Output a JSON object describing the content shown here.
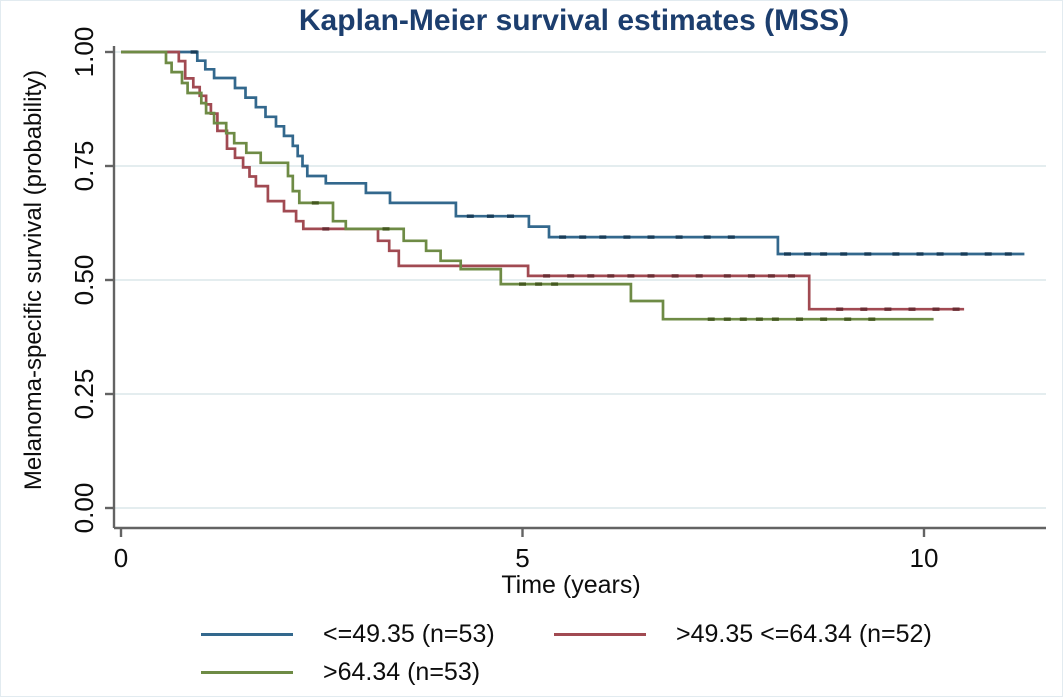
{
  "figure": {
    "title": "Kaplan-Meier survival estimates (MSS)",
    "title_color": "#1c3e6e",
    "background": "#ffffff",
    "grid_color": "#e4edef",
    "axis_color": "#636363",
    "text_color": "#0d0d0d"
  },
  "chart_data": {
    "type": "line",
    "variant": "kaplan-meier-step",
    "title": "Kaplan-Meier survival estimates (MSS)",
    "xlabel": "Time (years)",
    "ylabel": "Melanoma-specific survival (probability)",
    "xlim": [
      0,
      11.5
    ],
    "ylim": [
      0,
      1
    ],
    "grid": "horizontal light gridlines at y ticks",
    "legend_position": "below plot, two rows",
    "x_ticks": [
      {
        "value": 0,
        "label": "0"
      },
      {
        "value": 5,
        "label": "5"
      },
      {
        "value": 10,
        "label": "10"
      }
    ],
    "y_ticks": [
      {
        "value": 0.0,
        "label": "0.00"
      },
      {
        "value": 0.25,
        "label": "0.25"
      },
      {
        "value": 0.5,
        "label": "0.50"
      },
      {
        "value": 0.75,
        "label": "0.75"
      },
      {
        "value": 1.0,
        "label": "1.00"
      }
    ],
    "series": [
      {
        "name": "le_49_35",
        "legend_label": "<=49.35 (n=53)",
        "n": 53,
        "color": "#33688d",
        "censor_color": "#173c58",
        "points": [
          [
            0,
            1.0
          ],
          [
            0.95,
            0.981
          ],
          [
            1.05,
            0.962
          ],
          [
            1.16,
            0.943
          ],
          [
            1.42,
            0.921
          ],
          [
            1.55,
            0.9
          ],
          [
            1.68,
            0.879
          ],
          [
            1.8,
            0.858
          ],
          [
            1.93,
            0.837
          ],
          [
            2.03,
            0.816
          ],
          [
            2.14,
            0.794
          ],
          [
            2.2,
            0.772
          ],
          [
            2.26,
            0.75
          ],
          [
            2.32,
            0.728
          ],
          [
            2.55,
            0.712
          ],
          [
            3.05,
            0.691
          ],
          [
            3.35,
            0.669
          ],
          [
            4.17,
            0.64
          ],
          [
            5.08,
            0.617
          ],
          [
            5.33,
            0.594
          ],
          [
            8.18,
            0.557
          ]
        ],
        "end_t": 11.25,
        "censor_times": [
          0.91,
          4.35,
          4.6,
          4.85,
          5.5,
          5.75,
          6.0,
          6.3,
          6.6,
          6.95,
          7.3,
          7.6,
          8.3,
          8.55,
          8.75,
          9.0,
          9.3,
          9.65,
          9.95,
          10.2,
          10.5,
          10.8,
          11.05
        ]
      },
      {
        "name": "gt_49_35_le_64_34",
        "legend_label": ">49.35 <=64.34 (n=52)",
        "n": 52,
        "color": "#a14a52",
        "censor_color": "#6b2d33",
        "points": [
          [
            0,
            1.0
          ],
          [
            0.72,
            0.98
          ],
          [
            0.8,
            0.942
          ],
          [
            0.9,
            0.923
          ],
          [
            0.98,
            0.904
          ],
          [
            1.06,
            0.885
          ],
          [
            1.12,
            0.865
          ],
          [
            1.2,
            0.827
          ],
          [
            1.32,
            0.788
          ],
          [
            1.42,
            0.768
          ],
          [
            1.52,
            0.747
          ],
          [
            1.6,
            0.727
          ],
          [
            1.68,
            0.706
          ],
          [
            1.83,
            0.673
          ],
          [
            2.03,
            0.651
          ],
          [
            2.18,
            0.629
          ],
          [
            2.27,
            0.612
          ],
          [
            3.2,
            0.586
          ],
          [
            3.34,
            0.564
          ],
          [
            3.46,
            0.531
          ],
          [
            5.07,
            0.509
          ],
          [
            8.57,
            0.436
          ]
        ],
        "end_t": 10.5,
        "censor_times": [
          2.55,
          5.3,
          5.6,
          5.85,
          6.1,
          6.35,
          6.6,
          6.9,
          7.2,
          7.55,
          7.85,
          8.1,
          8.35,
          8.95,
          9.25,
          9.55,
          9.85,
          10.15,
          10.4
        ]
      },
      {
        "name": "gt_64_34",
        "legend_label": ">64.34 (n=53)",
        "n": 53,
        "color": "#6e8b45",
        "censor_color": "#44591f",
        "points": [
          [
            0,
            1.0
          ],
          [
            0.56,
            0.976
          ],
          [
            0.63,
            0.956
          ],
          [
            0.76,
            0.932
          ],
          [
            0.83,
            0.91
          ],
          [
            1.0,
            0.888
          ],
          [
            1.06,
            0.866
          ],
          [
            1.16,
            0.844
          ],
          [
            1.31,
            0.822
          ],
          [
            1.41,
            0.8
          ],
          [
            1.56,
            0.779
          ],
          [
            1.74,
            0.757
          ],
          [
            2.08,
            0.728
          ],
          [
            2.14,
            0.695
          ],
          [
            2.22,
            0.669
          ],
          [
            2.64,
            0.629
          ],
          [
            2.8,
            0.612
          ],
          [
            3.52,
            0.586
          ],
          [
            3.8,
            0.564
          ],
          [
            3.98,
            0.542
          ],
          [
            4.23,
            0.524
          ],
          [
            4.73,
            0.491
          ],
          [
            6.35,
            0.454
          ],
          [
            6.75,
            0.414
          ]
        ],
        "end_t": 10.12,
        "censor_times": [
          2.42,
          3.3,
          5.0,
          5.2,
          5.4,
          7.35,
          7.55,
          7.75,
          7.95,
          8.15,
          8.45,
          8.75,
          9.05,
          9.35
        ]
      }
    ]
  },
  "legend": {
    "items": [
      {
        "label": "<=49.35 (n=53)"
      },
      {
        "label": ">49.35 <=64.34 (n=52)"
      },
      {
        "label": ">64.34 (n=53)"
      }
    ]
  }
}
